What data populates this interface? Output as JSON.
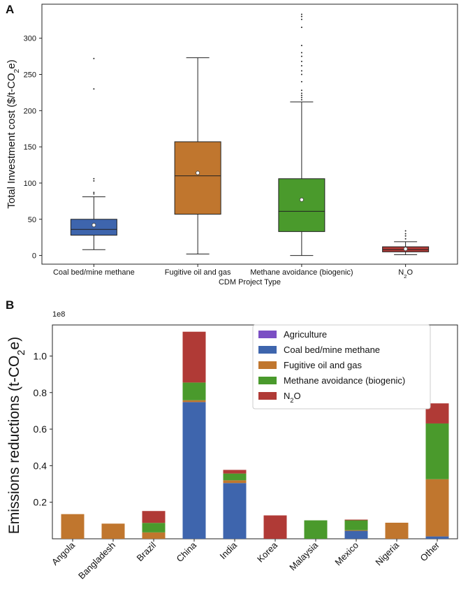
{
  "panel_a": {
    "letter": "A"
  },
  "panel_b": {
    "letter": "B"
  },
  "chart_data": [
    {
      "type": "box",
      "title": "",
      "xlabel": "CDM Project Type",
      "ylabel": "Total Investment cost ($/t-CO",
      "ylabel_sub": "2",
      "ylabel_end": "e)",
      "ylim": [
        -12,
        347
      ],
      "yticks": [
        0,
        50,
        100,
        150,
        200,
        250,
        300
      ],
      "categories": [
        {
          "label": "Coal bed/mine methane",
          "sub": "",
          "label_end": "",
          "color": "#3e65ad",
          "whislo": 8,
          "q1": 28,
          "med": 36,
          "q3": 50,
          "whishi": 81,
          "mean": 42,
          "fliers": [
            85,
            87,
            103,
            106,
            230,
            272
          ]
        },
        {
          "label": "Fugitive oil and gas",
          "sub": "",
          "label_end": "",
          "color": "#c0762e",
          "whislo": 2,
          "q1": 57,
          "med": 110,
          "q3": 157,
          "whishi": 273,
          "mean": 114,
          "fliers": []
        },
        {
          "label": "Methane avoidance (biogenic)",
          "sub": "",
          "label_end": "",
          "color": "#4a9a2c",
          "whislo": 0,
          "q1": 33,
          "med": 61,
          "q3": 106,
          "whishi": 212,
          "mean": 77,
          "fliers": [
            215,
            218,
            221,
            224,
            228,
            240,
            250,
            255,
            262,
            268,
            275,
            280,
            290,
            315,
            326,
            330,
            333
          ]
        },
        {
          "label": "N",
          "sub": "2",
          "label_end": "O",
          "color": "#b03a36",
          "whislo": 1,
          "q1": 5,
          "med": 8,
          "q3": 12,
          "whishi": 19,
          "mean": 9,
          "fliers": [
            23,
            27,
            30,
            34
          ]
        }
      ]
    },
    {
      "type": "stacked_bar",
      "title": "",
      "xlabel": "",
      "ylabel": "Emissions reductions (t-CO",
      "ylabel_sub": "2",
      "ylabel_end": "e)",
      "scale_label": "1e8",
      "ylim": [
        0.0,
        1.17
      ],
      "yticks": [
        0.2,
        0.4,
        0.6,
        0.8,
        1.0
      ],
      "ytick_labels": [
        "0.2",
        "0.4",
        "0.6",
        "0.8",
        "1.0"
      ],
      "categories": [
        "Angola",
        "Bangladesh",
        "Brazil",
        "China",
        "India",
        "Korea",
        "Malaysia",
        "Mexico",
        "Nigeria",
        "Other"
      ],
      "series": [
        {
          "name": "Agriculture",
          "sub": "",
          "name_end": "",
          "color": "#7b4fc4",
          "values": [
            0,
            0,
            0,
            0,
            0,
            0,
            0,
            0,
            0,
            0
          ]
        },
        {
          "name": "Coal bed/mine methane",
          "sub": "",
          "name_end": "",
          "color": "#3e65ad",
          "values": [
            0,
            0,
            0,
            0.748,
            0.305,
            0,
            0,
            0.045,
            0,
            0.013
          ]
        },
        {
          "name": "Fugitive oil and gas",
          "sub": "",
          "name_end": "",
          "color": "#c0762e",
          "values": [
            0.135,
            0.083,
            0.035,
            0.01,
            0.015,
            0,
            0,
            0.002,
            0.088,
            0.313
          ]
        },
        {
          "name": "Methane avoidance (biogenic)",
          "sub": "",
          "name_end": "",
          "color": "#4a9a2c",
          "values": [
            0,
            0,
            0.052,
            0.097,
            0.037,
            0,
            0.101,
            0.055,
            0,
            0.305
          ]
        },
        {
          "name": "N",
          "sub": "2",
          "name_end": "O",
          "color": "#b03a36",
          "values": [
            0,
            0,
            0.065,
            0.278,
            0.02,
            0.128,
            0,
            0.003,
            0,
            0.11
          ]
        }
      ],
      "legend_position": "top-right"
    }
  ]
}
